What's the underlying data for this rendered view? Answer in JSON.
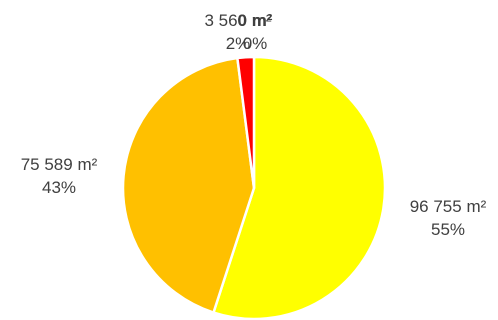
{
  "chart_data": {
    "type": "pie",
    "title": "",
    "slices": [
      {
        "value_label": "96 755 m²",
        "percent_label": "55%",
        "value": 96755,
        "color": "#FFFF00"
      },
      {
        "value_label": "75 589 m²",
        "percent_label": "43%",
        "value": 75589,
        "color": "#FFC000"
      },
      {
        "value_label": "3 560 m²",
        "percent_label": "2%",
        "value": 3560,
        "color": "#FF0000"
      },
      {
        "value_label": "0 m²",
        "percent_label": "0%",
        "value": 0,
        "color": "#FFFFFF"
      }
    ],
    "start_angle_deg": 0,
    "direction": "clockwise",
    "label_color": "#404040",
    "slice_border_color": "#FFFFFF",
    "legend": "none"
  }
}
